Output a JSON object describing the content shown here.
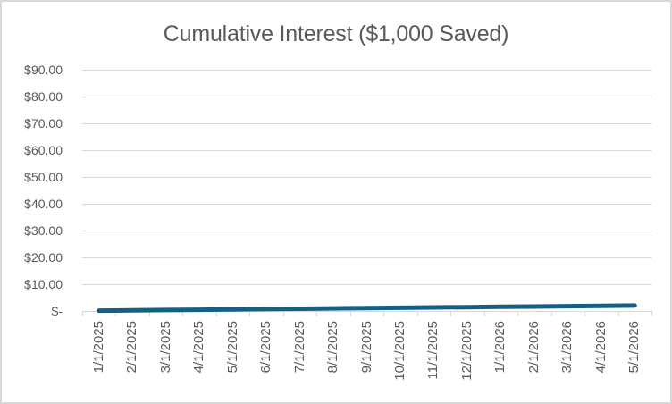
{
  "window": {
    "background": "#ffffff",
    "border_color": "#d9d9d9"
  },
  "chart_data": {
    "type": "line",
    "title": "Cumulative Interest ($1,000 Saved)",
    "categories": [
      "1/1/2025",
      "2/1/2025",
      "3/1/2025",
      "4/1/2025",
      "5/1/2025",
      "6/1/2025",
      "7/1/2025",
      "8/1/2025",
      "9/1/2025",
      "10/1/2025",
      "11/1/2025",
      "12/1/2025",
      "1/1/2026",
      "2/1/2026",
      "3/1/2026",
      "4/1/2026",
      "5/1/2026"
    ],
    "values": [
      0.12,
      0.24,
      0.36,
      0.48,
      0.6,
      0.72,
      0.84,
      0.96,
      1.08,
      1.2,
      1.32,
      1.44,
      1.56,
      1.68,
      1.8,
      1.92,
      2.04
    ],
    "xlabel": "",
    "ylabel": "",
    "ylim": [
      0,
      90
    ],
    "y_tick_step": 10,
    "y_tick_labels": [
      "$-",
      "$10.00",
      "$20.00",
      "$30.00",
      "$40.00",
      "$50.00",
      "$60.00",
      "$70.00",
      "$80.00",
      "$90.00"
    ],
    "x_tick_label_rotation": -90,
    "grid": true,
    "legend": false,
    "colors": {
      "series": "#156082",
      "gridline": "#d9d9d9",
      "axis_text": "#595959",
      "title_text": "#595959"
    }
  }
}
